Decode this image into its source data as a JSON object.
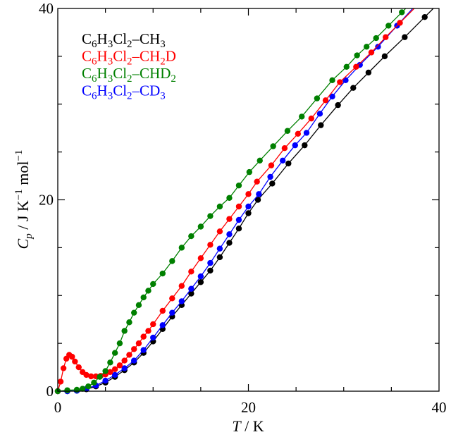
{
  "chart_data": {
    "type": "line",
    "title": "",
    "xlabel": {
      "symbol": "T",
      "rest": " / K"
    },
    "ylabel": {
      "symbol": "C",
      "sub": "p",
      "rest1": " / J K",
      "sup1": "−1",
      "rest2": " mol",
      "sup2": "−1"
    },
    "xlim": [
      0,
      40
    ],
    "ylim": [
      0,
      40
    ],
    "xticks": [
      "0",
      "20",
      "40"
    ],
    "yticks": [
      "0",
      "20",
      "40"
    ],
    "grid": false,
    "legend_position": "top-left",
    "series": [
      {
        "name": "C6H3Cl2–CH3",
        "color": "#000000",
        "T": [
          0,
          1,
          2,
          3,
          4,
          5,
          6,
          7,
          8,
          9,
          10,
          11,
          12,
          13,
          14,
          15,
          16,
          17,
          18,
          19,
          20,
          21,
          22.5,
          24.2,
          25.9,
          27.6,
          29.4,
          31.0,
          32.6,
          34.3,
          36.4,
          38.5
        ],
        "Cp": [
          0,
          0,
          0.05,
          0.2,
          0.5,
          0.9,
          1.5,
          2.2,
          3.0,
          4.0,
          5.2,
          6.5,
          7.8,
          9.0,
          10.2,
          11.4,
          12.6,
          14.0,
          15.5,
          17.0,
          18.6,
          20.0,
          21.7,
          23.8,
          25.7,
          27.8,
          29.9,
          31.7,
          33.3,
          35.0,
          37.0,
          39.1
        ]
      },
      {
        "name": "C6H3Cl2–CH2D",
        "color": "#ff0000",
        "T": [
          0,
          0.3,
          0.6,
          0.9,
          1.2,
          1.5,
          1.8,
          2.2,
          2.6,
          3.0,
          3.5,
          4.0,
          4.5,
          5,
          5.5,
          6,
          6.5,
          7,
          7.5,
          8,
          8.5,
          9,
          9.5,
          10,
          11,
          12,
          13,
          14,
          15,
          16,
          17,
          18,
          19,
          20,
          20.9,
          22.4,
          23.8,
          25.2,
          26.6,
          28.1,
          29.6,
          31.3,
          32.9,
          34.4,
          35.9
        ],
        "Cp": [
          0,
          1.0,
          2.4,
          3.4,
          3.8,
          3.6,
          3.1,
          2.5,
          2.0,
          1.7,
          1.55,
          1.55,
          1.6,
          1.75,
          2.0,
          2.3,
          2.7,
          3.2,
          3.8,
          4.4,
          5.0,
          5.7,
          6.3,
          7.0,
          8.4,
          9.7,
          11.0,
          12.5,
          13.9,
          15.3,
          16.7,
          18.0,
          19.3,
          20.6,
          21.9,
          23.6,
          25.4,
          26.9,
          28.5,
          30.4,
          32.3,
          33.9,
          35.4,
          37.0,
          38.5
        ]
      },
      {
        "name": "C6H3Cl2–CHD2",
        "color": "#008000",
        "T": [
          0,
          1,
          2,
          2.6,
          3.2,
          3.8,
          4.4,
          5,
          5.5,
          6,
          6.5,
          7,
          7.5,
          8,
          8.5,
          9,
          9.5,
          10,
          11,
          12,
          13,
          14,
          15,
          16,
          17,
          18,
          19,
          20.1,
          21.2,
          22.6,
          24.1,
          25.6,
          27.2,
          28.8,
          30.3,
          31.4,
          32.4,
          33.4,
          34.7,
          36.1
        ],
        "Cp": [
          0,
          0.1,
          0.15,
          0.25,
          0.5,
          0.9,
          1.5,
          2.1,
          3.0,
          4.0,
          5.0,
          6.3,
          7.2,
          8.2,
          9.0,
          9.8,
          10.5,
          11.2,
          12.3,
          13.6,
          15.0,
          16.2,
          17.2,
          18.3,
          19.3,
          20.2,
          21.5,
          22.9,
          24.1,
          25.6,
          27.2,
          28.7,
          30.6,
          32.5,
          33.9,
          35.1,
          36.0,
          36.9,
          38.2,
          39.6
        ]
      },
      {
        "name": "C6H3Cl2–CD3",
        "color": "#0000ff",
        "T": [
          0,
          1,
          2,
          3,
          4,
          5,
          6,
          7,
          8,
          9,
          10,
          11,
          12,
          13,
          14,
          15,
          16,
          17,
          18,
          19,
          20,
          21.1,
          22.3,
          23.6,
          24.9,
          26.1,
          27.5,
          28.8,
          30.2,
          31.7,
          33.6,
          35.6
        ],
        "Cp": [
          0,
          0,
          0.05,
          0.25,
          0.6,
          1.1,
          1.7,
          2.4,
          3.2,
          4.3,
          5.6,
          6.9,
          8.2,
          9.4,
          10.7,
          12.0,
          13.4,
          14.9,
          16.4,
          17.9,
          19.3,
          20.6,
          22.4,
          24.1,
          25.7,
          27.0,
          29.0,
          30.8,
          32.5,
          34.1,
          36.0,
          38.2
        ]
      }
    ]
  }
}
